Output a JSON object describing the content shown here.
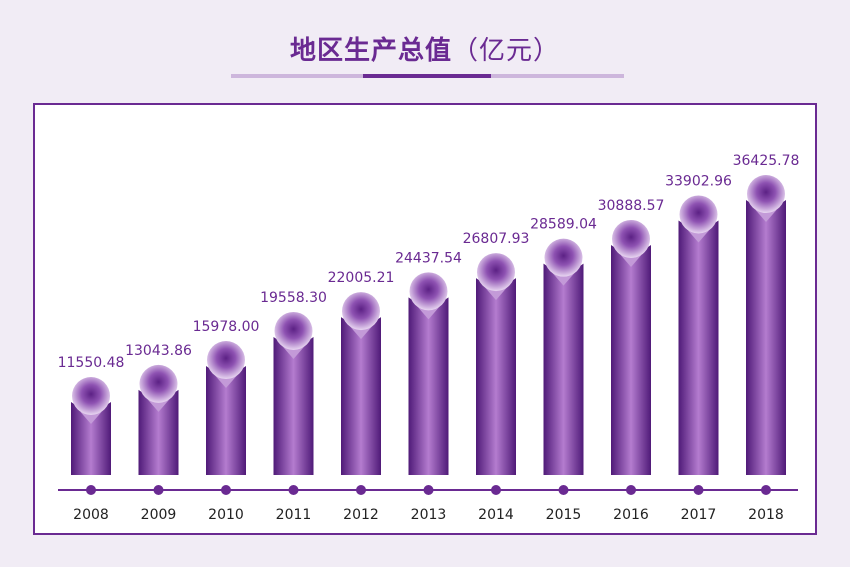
{
  "header": {
    "title": "地区生产总值",
    "unit": "（亿元）"
  },
  "colors": {
    "accent": "#6a2a92",
    "bar_dark": "#5c2185",
    "bar_light": "#b77fd2",
    "label": "#6a2a92",
    "panel_border": "#6a2a92"
  },
  "chart_data": {
    "type": "bar",
    "title": "地区生产总值（亿元）",
    "xlabel": "",
    "ylabel": "",
    "categories": [
      "2008",
      "2009",
      "2010",
      "2011",
      "2012",
      "2013",
      "2014",
      "2015",
      "2016",
      "2017",
      "2018"
    ],
    "values": [
      11550.48,
      13043.86,
      15978.0,
      19558.3,
      22005.21,
      24437.54,
      26807.93,
      28589.04,
      30888.57,
      33902.96,
      36425.78
    ],
    "value_labels": [
      "11550.48",
      "13043.86",
      "15978.00",
      "19558.30",
      "22005.21",
      "24437.54",
      "26807.93",
      "28589.04",
      "30888.57",
      "33902.96",
      "36425.78"
    ],
    "ylim": [
      0,
      40000
    ],
    "grid": false,
    "legend": "none"
  }
}
